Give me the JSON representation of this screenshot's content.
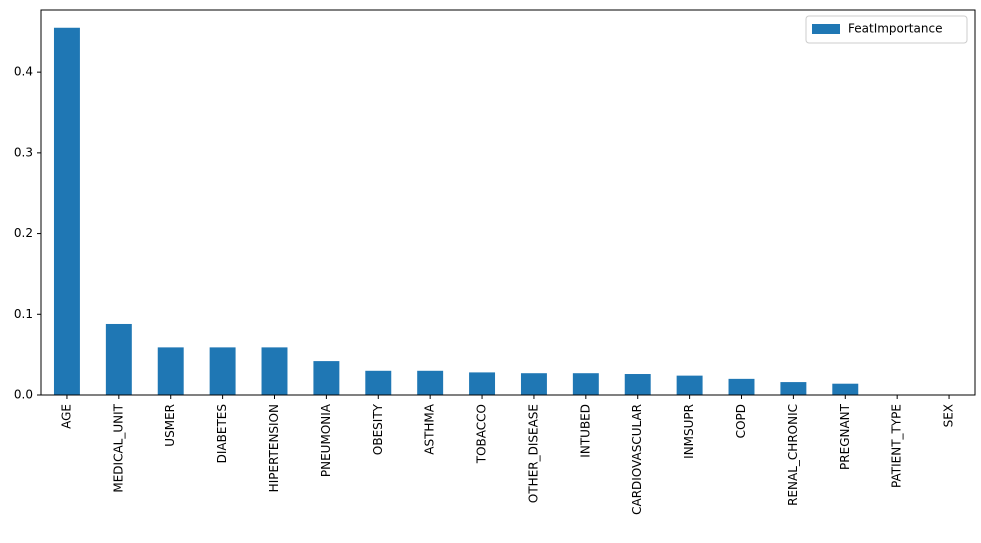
{
  "chart_data": {
    "type": "bar",
    "categories": [
      "AGE",
      "MEDICAL_UNIT",
      "USMER",
      "DIABETES",
      "HIPERTENSION",
      "PNEUMONIA",
      "OBESITY",
      "ASTHMA",
      "TOBACCO",
      "OTHER_DISEASE",
      "INTUBED",
      "CARDIOVASCULAR",
      "INMSUPR",
      "COPD",
      "RENAL_CHRONIC",
      "PREGNANT",
      "PATIENT_TYPE",
      "SEX"
    ],
    "series": [
      {
        "name": "FeatImportance",
        "color": "#1f77b4",
        "values": [
          0.455,
          0.088,
          0.059,
          0.059,
          0.059,
          0.042,
          0.03,
          0.03,
          0.028,
          0.027,
          0.027,
          0.026,
          0.024,
          0.02,
          0.016,
          0.014,
          0,
          0
        ]
      }
    ],
    "ylim": [
      0,
      0.477
    ],
    "yticks": [
      {
        "value": 0,
        "label": "0.0"
      },
      0.1,
      0.2,
      0.3,
      0.4
    ],
    "legend": "upper right"
  }
}
